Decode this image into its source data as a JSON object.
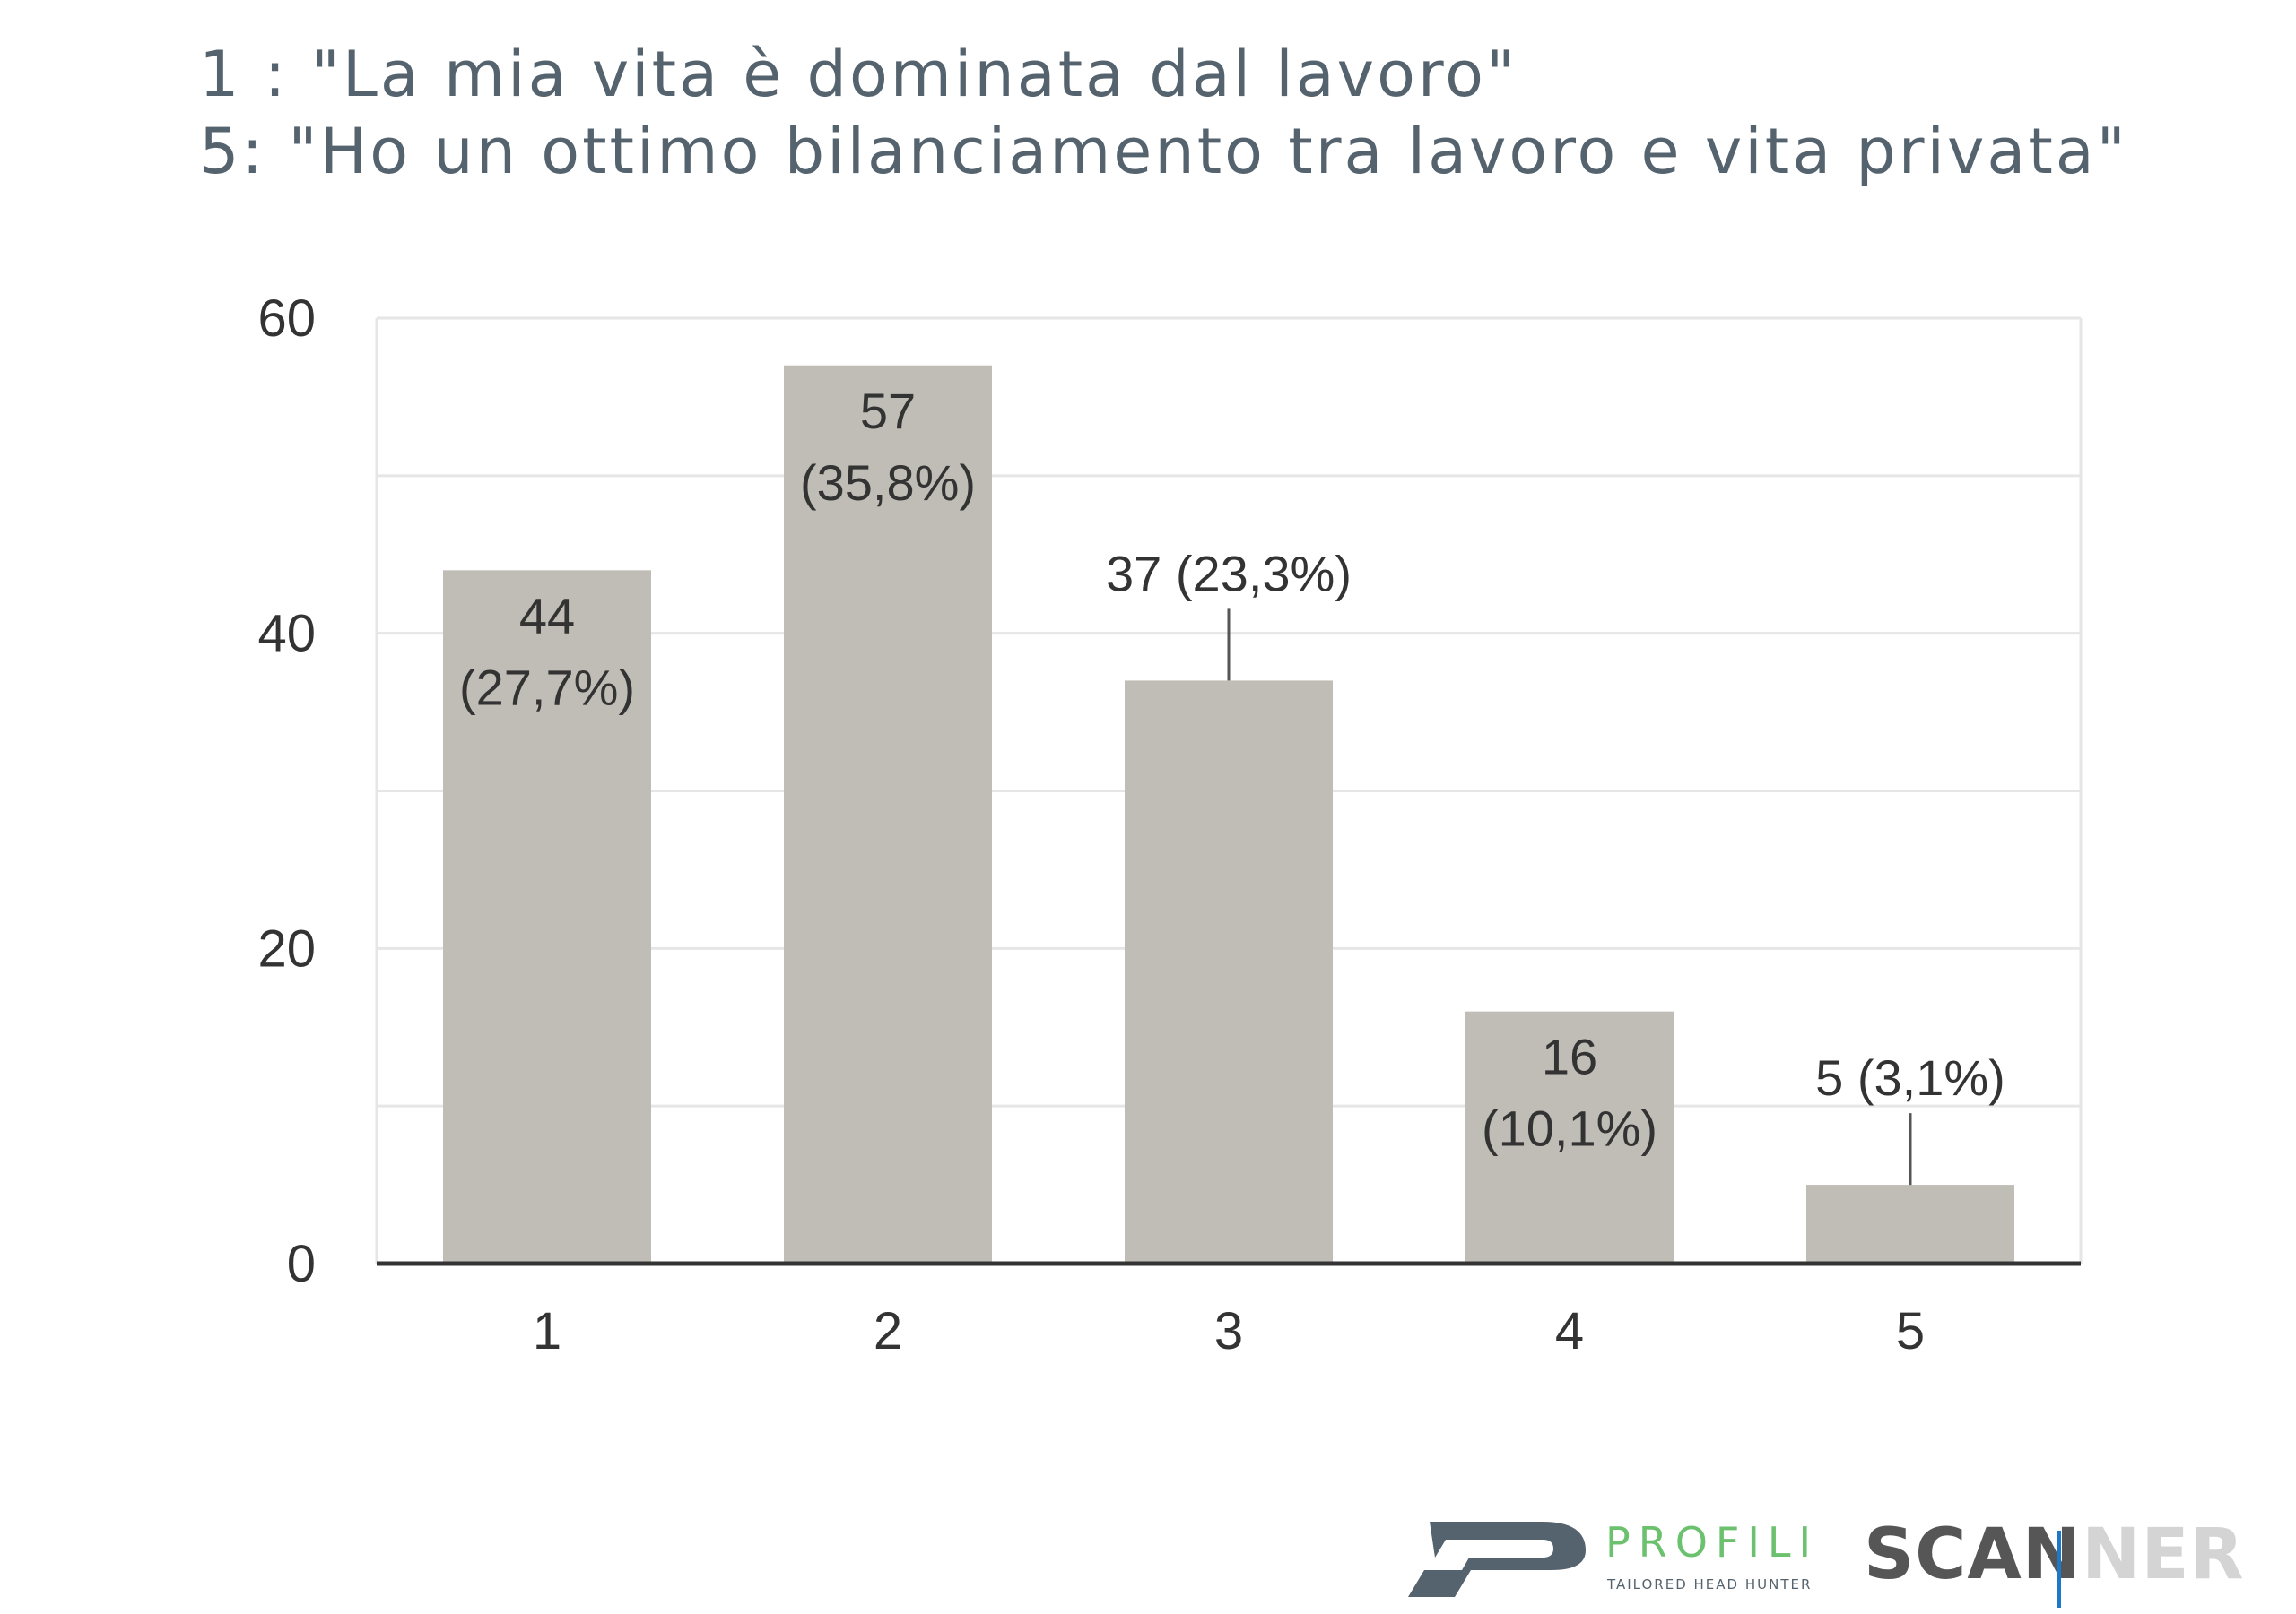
{
  "header": {
    "line1": "1 : \"La mia vita è dominata dal lavoro\"",
    "line2": "5: \"Ho un ottimo bilanciamento tra lavoro e vita privata\""
  },
  "chart_data": {
    "type": "bar",
    "categories": [
      "1",
      "2",
      "3",
      "4",
      "5"
    ],
    "values": [
      44,
      57,
      37,
      16,
      5
    ],
    "data_labels": [
      [
        "44",
        "(27,7%)"
      ],
      [
        "57",
        "(35,8%)"
      ],
      [
        "37 (23,3%)"
      ],
      [
        "16",
        "(10,1%)"
      ],
      [
        "5 (3,1%)"
      ]
    ],
    "ylim": [
      0,
      60
    ],
    "yticks": [
      0,
      20,
      40,
      60
    ],
    "grid": true,
    "bar_color": "#bfbdb5",
    "grid_color": "#e6e6e6",
    "axis_color": "#333333",
    "label_color": "#333333",
    "title": "",
    "xlabel": "",
    "ylabel": ""
  },
  "branding": {
    "profili": "PROFILI",
    "profili_tagline": "TAILORED HEAD HUNTER",
    "scanner_dark": "SCAN",
    "scanner_light": "NER",
    "profili_color": "#6cc16e",
    "logo_color": "#55636e"
  }
}
